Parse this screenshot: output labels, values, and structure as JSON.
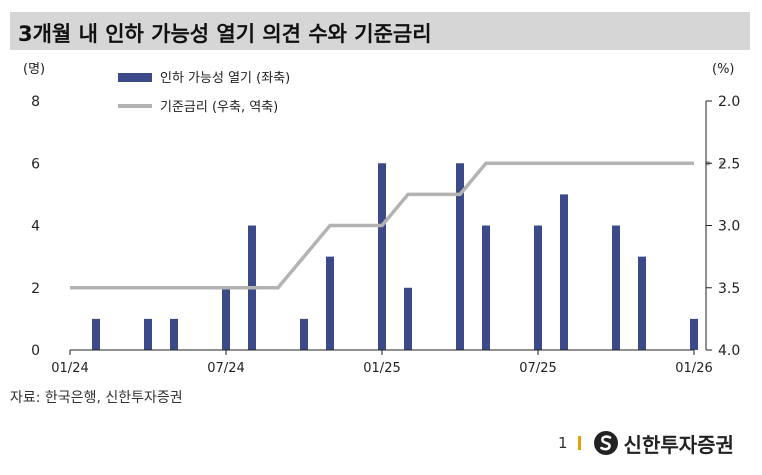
{
  "title": "3개월 내 인하 가능성 열기 의견 수와 기준금리",
  "source": "자료: 한국은행, 신한투자증권",
  "footer": {
    "page": "1",
    "brand": "신한투자증권",
    "logo_icon": "shinhan-logo-icon"
  },
  "colors": {
    "bar": "#3d4a8a",
    "line": "#b3b3b3",
    "title_bg": "#d6d6d6",
    "accent": "#e0a300"
  },
  "chart_data": {
    "type": "bar+line",
    "left_axis": {
      "unit": "(명)",
      "min": 0,
      "max": 8,
      "ticks": [
        "0",
        "2",
        "4",
        "6",
        "8"
      ]
    },
    "right_axis": {
      "unit": "(%)",
      "min": 2.0,
      "max": 4.0,
      "inverted": true,
      "ticks": [
        "2.0",
        "2.5",
        "3.0",
        "3.5",
        "4.0"
      ]
    },
    "x_ticks": [
      {
        "label": "01/24",
        "index": 0
      },
      {
        "label": "07/24",
        "index": 6
      },
      {
        "label": "01/25",
        "index": 12
      },
      {
        "label": "07/25",
        "index": 18
      },
      {
        "label": "01/26",
        "index": 24
      }
    ],
    "grid": false,
    "legend": {
      "placement": "top-left"
    },
    "series": [
      {
        "name": "인하 가능성 열기 (좌축)",
        "type": "bar",
        "axis": "left",
        "values": [
          0,
          1,
          0,
          1,
          1,
          0,
          2,
          4,
          0,
          1,
          3,
          0,
          6,
          2,
          0,
          6,
          4,
          0,
          4,
          5,
          0,
          4,
          3,
          0,
          1
        ]
      },
      {
        "name": "기준금리 (우축, 역축)",
        "type": "line",
        "axis": "right",
        "values": [
          3.5,
          3.5,
          3.5,
          3.5,
          3.5,
          3.5,
          3.5,
          3.5,
          3.5,
          3.25,
          3.0,
          3.0,
          3.0,
          2.75,
          2.75,
          2.75,
          2.5,
          2.5,
          2.5,
          2.5,
          2.5,
          2.5,
          2.5,
          2.5,
          2.5
        ],
        "dotted_extension": [
          2.5,
          2.5
        ]
      }
    ]
  }
}
